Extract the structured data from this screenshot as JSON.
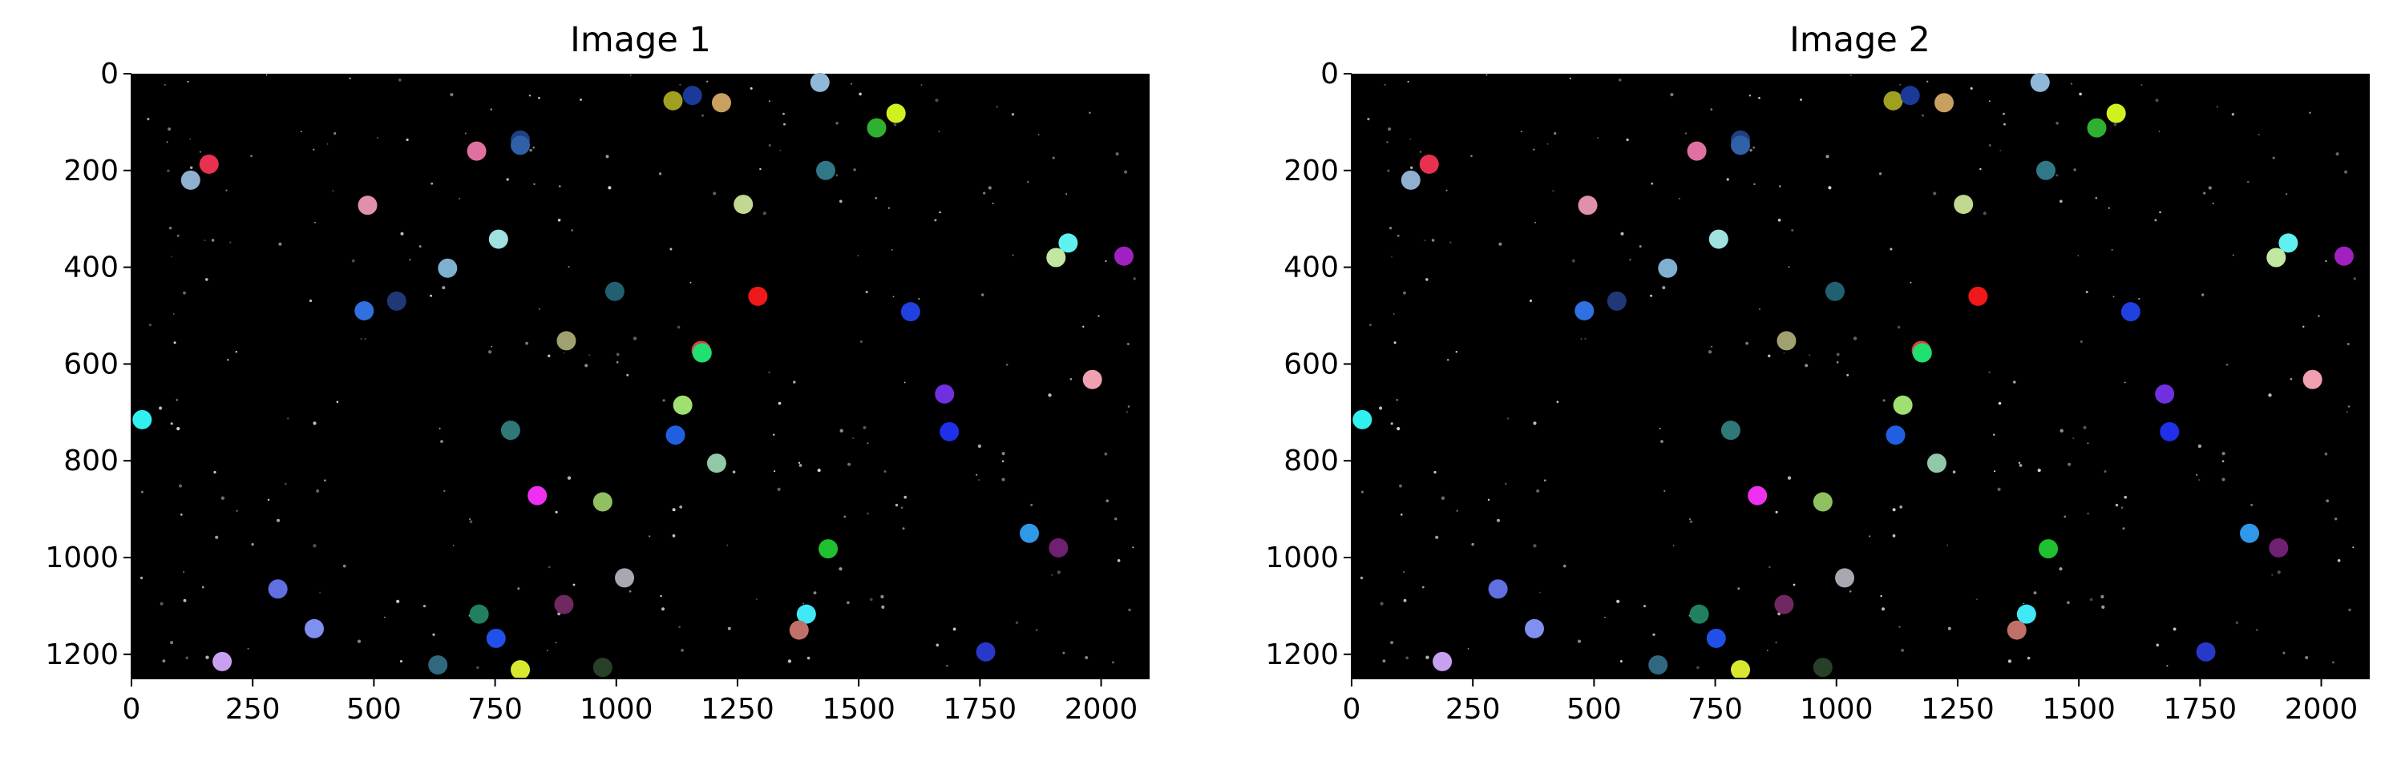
{
  "chart_data": [
    {
      "type": "scatter",
      "title": "Image 1",
      "background": "#000000",
      "xlim": [
        0,
        2100
      ],
      "ylim": [
        1250,
        0
      ],
      "xticks": [
        "0",
        "250",
        "500",
        "750",
        "1000",
        "1250",
        "1500",
        "1750",
        "2000"
      ],
      "yticks": [
        "0",
        "200",
        "400",
        "600",
        "800",
        "1000",
        "1200"
      ],
      "points": [
        {
          "x": 1117,
          "y": 56,
          "color": "#a0a020"
        },
        {
          "x": 1157,
          "y": 45,
          "color": "#1a3a9a"
        },
        {
          "x": 1217,
          "y": 60,
          "color": "#c8a060"
        },
        {
          "x": 1420,
          "y": 18,
          "color": "#90b8d8"
        },
        {
          "x": 1577,
          "y": 82,
          "color": "#d0f020"
        },
        {
          "x": 1537,
          "y": 112,
          "color": "#30b030"
        },
        {
          "x": 802,
          "y": 137,
          "color": "#204080"
        },
        {
          "x": 802,
          "y": 148,
          "color": "#3060a8"
        },
        {
          "x": 712,
          "y": 160,
          "color": "#e070a0"
        },
        {
          "x": 160,
          "y": 187,
          "color": "#e83050"
        },
        {
          "x": 122,
          "y": 220,
          "color": "#90b0d0"
        },
        {
          "x": 1432,
          "y": 200,
          "color": "#307888"
        },
        {
          "x": 487,
          "y": 272,
          "color": "#e090a8"
        },
        {
          "x": 1262,
          "y": 270,
          "color": "#c0d890"
        },
        {
          "x": 757,
          "y": 342,
          "color": "#a0e0e0"
        },
        {
          "x": 1932,
          "y": 350,
          "color": "#60f0f0"
        },
        {
          "x": 1907,
          "y": 380,
          "color": "#c0e8a0"
        },
        {
          "x": 2047,
          "y": 377,
          "color": "#a020c0"
        },
        {
          "x": 652,
          "y": 402,
          "color": "#80b0d0"
        },
        {
          "x": 547,
          "y": 470,
          "color": "#203878"
        },
        {
          "x": 480,
          "y": 490,
          "color": "#3070e0"
        },
        {
          "x": 997,
          "y": 450,
          "color": "#206070"
        },
        {
          "x": 1292,
          "y": 460,
          "color": "#f01818"
        },
        {
          "x": 1607,
          "y": 492,
          "color": "#2040e0"
        },
        {
          "x": 897,
          "y": 552,
          "color": "#a0a070"
        },
        {
          "x": 1175,
          "y": 572,
          "color": "#e04040"
        },
        {
          "x": 1177,
          "y": 577,
          "color": "#20e070"
        },
        {
          "x": 1677,
          "y": 662,
          "color": "#7030e0"
        },
        {
          "x": 1982,
          "y": 632,
          "color": "#f0a0b0"
        },
        {
          "x": 22,
          "y": 715,
          "color": "#30f0f0"
        },
        {
          "x": 1137,
          "y": 685,
          "color": "#a0e070"
        },
        {
          "x": 782,
          "y": 737,
          "color": "#307878"
        },
        {
          "x": 1122,
          "y": 747,
          "color": "#2060e0"
        },
        {
          "x": 1687,
          "y": 740,
          "color": "#2030e8"
        },
        {
          "x": 1207,
          "y": 805,
          "color": "#90c8a8"
        },
        {
          "x": 837,
          "y": 872,
          "color": "#f030f0"
        },
        {
          "x": 972,
          "y": 885,
          "color": "#90c060"
        },
        {
          "x": 1437,
          "y": 982,
          "color": "#20c030"
        },
        {
          "x": 1852,
          "y": 950,
          "color": "#3098e8"
        },
        {
          "x": 1912,
          "y": 980,
          "color": "#702070"
        },
        {
          "x": 302,
          "y": 1065,
          "color": "#6070e0"
        },
        {
          "x": 1017,
          "y": 1042,
          "color": "#a8a8b0"
        },
        {
          "x": 892,
          "y": 1097,
          "color": "#702860"
        },
        {
          "x": 717,
          "y": 1117,
          "color": "#208060"
        },
        {
          "x": 1392,
          "y": 1117,
          "color": "#40e8f8"
        },
        {
          "x": 377,
          "y": 1147,
          "color": "#8090f0"
        },
        {
          "x": 752,
          "y": 1167,
          "color": "#2050e8"
        },
        {
          "x": 1377,
          "y": 1150,
          "color": "#c07068"
        },
        {
          "x": 1762,
          "y": 1195,
          "color": "#2838c8"
        },
        {
          "x": 187,
          "y": 1215,
          "color": "#c8a0f0"
        },
        {
          "x": 632,
          "y": 1222,
          "color": "#306880"
        },
        {
          "x": 802,
          "y": 1232,
          "color": "#d8e830"
        },
        {
          "x": 972,
          "y": 1227,
          "color": "#284028"
        }
      ]
    },
    {
      "type": "scatter",
      "title": "Image 2",
      "background": "#000000",
      "xlim": [
        0,
        2100
      ],
      "ylim": [
        1250,
        0
      ],
      "xticks": [
        "0",
        "250",
        "500",
        "750",
        "1000",
        "1250",
        "1500",
        "1750",
        "2000"
      ],
      "yticks": [
        "0",
        "200",
        "400",
        "600",
        "800",
        "1000",
        "1200"
      ],
      "points": [
        {
          "x": 1117,
          "y": 56,
          "color": "#a0a020"
        },
        {
          "x": 1152,
          "y": 45,
          "color": "#1a3a9a"
        },
        {
          "x": 1222,
          "y": 60,
          "color": "#c8a060"
        },
        {
          "x": 1420,
          "y": 18,
          "color": "#90b8d8"
        },
        {
          "x": 1577,
          "y": 82,
          "color": "#d0f020"
        },
        {
          "x": 1537,
          "y": 112,
          "color": "#30b030"
        },
        {
          "x": 802,
          "y": 137,
          "color": "#204080"
        },
        {
          "x": 802,
          "y": 148,
          "color": "#3060a8"
        },
        {
          "x": 712,
          "y": 160,
          "color": "#e070a0"
        },
        {
          "x": 160,
          "y": 187,
          "color": "#e83050"
        },
        {
          "x": 122,
          "y": 220,
          "color": "#90b0d0"
        },
        {
          "x": 1432,
          "y": 200,
          "color": "#307888"
        },
        {
          "x": 487,
          "y": 272,
          "color": "#e090a8"
        },
        {
          "x": 1262,
          "y": 270,
          "color": "#c0d890"
        },
        {
          "x": 757,
          "y": 342,
          "color": "#a0e0e0"
        },
        {
          "x": 1932,
          "y": 350,
          "color": "#60f0f0"
        },
        {
          "x": 1907,
          "y": 380,
          "color": "#c0e8a0"
        },
        {
          "x": 2047,
          "y": 377,
          "color": "#a020c0"
        },
        {
          "x": 652,
          "y": 402,
          "color": "#80b0d0"
        },
        {
          "x": 547,
          "y": 470,
          "color": "#203878"
        },
        {
          "x": 480,
          "y": 490,
          "color": "#3070e0"
        },
        {
          "x": 997,
          "y": 450,
          "color": "#206070"
        },
        {
          "x": 1292,
          "y": 460,
          "color": "#f01818"
        },
        {
          "x": 1607,
          "y": 492,
          "color": "#2040e0"
        },
        {
          "x": 897,
          "y": 552,
          "color": "#a0a070"
        },
        {
          "x": 1175,
          "y": 572,
          "color": "#e04040"
        },
        {
          "x": 1177,
          "y": 577,
          "color": "#20e070"
        },
        {
          "x": 1677,
          "y": 662,
          "color": "#7030e0"
        },
        {
          "x": 1982,
          "y": 632,
          "color": "#f0a0b0"
        },
        {
          "x": 22,
          "y": 715,
          "color": "#30f0f0"
        },
        {
          "x": 1137,
          "y": 685,
          "color": "#a0e070"
        },
        {
          "x": 782,
          "y": 737,
          "color": "#307878"
        },
        {
          "x": 1122,
          "y": 747,
          "color": "#2060e0"
        },
        {
          "x": 1687,
          "y": 740,
          "color": "#2030e8"
        },
        {
          "x": 1207,
          "y": 805,
          "color": "#90c8a8"
        },
        {
          "x": 837,
          "y": 872,
          "color": "#f030f0"
        },
        {
          "x": 972,
          "y": 885,
          "color": "#90c060"
        },
        {
          "x": 1437,
          "y": 982,
          "color": "#20c030"
        },
        {
          "x": 1852,
          "y": 950,
          "color": "#3098e8"
        },
        {
          "x": 1912,
          "y": 980,
          "color": "#702070"
        },
        {
          "x": 302,
          "y": 1065,
          "color": "#6070e0"
        },
        {
          "x": 1017,
          "y": 1042,
          "color": "#a8a8b0"
        },
        {
          "x": 892,
          "y": 1097,
          "color": "#702860"
        },
        {
          "x": 717,
          "y": 1117,
          "color": "#208060"
        },
        {
          "x": 1392,
          "y": 1117,
          "color": "#40e8f8"
        },
        {
          "x": 377,
          "y": 1147,
          "color": "#8090f0"
        },
        {
          "x": 752,
          "y": 1167,
          "color": "#2050e8"
        },
        {
          "x": 1372,
          "y": 1150,
          "color": "#c07068"
        },
        {
          "x": 1762,
          "y": 1195,
          "color": "#2838c8"
        },
        {
          "x": 187,
          "y": 1215,
          "color": "#c8a0f0"
        },
        {
          "x": 632,
          "y": 1222,
          "color": "#306880"
        },
        {
          "x": 802,
          "y": 1232,
          "color": "#d8e830"
        },
        {
          "x": 972,
          "y": 1227,
          "color": "#284028"
        }
      ]
    }
  ]
}
